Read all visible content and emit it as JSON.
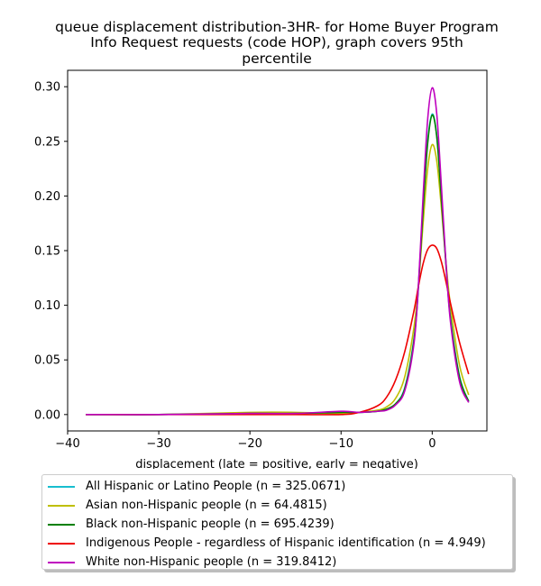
{
  "chart_data": {
    "type": "line",
    "title_lines": [
      "queue displacement distribution-3HR-  for Home Buyer Program",
      "Info Request  requests (code HOP), graph covers 95th",
      "percentile"
    ],
    "xlabel": "displacement (late = positive, early = negative)",
    "ylabel": "",
    "xlim": [
      -40,
      6
    ],
    "ylim": [
      -0.015,
      0.315
    ],
    "xticks": [
      -40,
      -30,
      -20,
      -10,
      0
    ],
    "xtick_labels": [
      "−40",
      "−30",
      "−20",
      "−10",
      "0"
    ],
    "yticks": [
      0.0,
      0.05,
      0.1,
      0.15,
      0.2,
      0.25,
      0.3
    ],
    "ytick_labels": [
      "0.00",
      "0.05",
      "0.10",
      "0.15",
      "0.20",
      "0.25",
      "0.30"
    ],
    "grid": false,
    "legend_placement": "below plot",
    "series": [
      {
        "name": "All Hispanic or Latino People (n = 325.0671)",
        "color": "#17becf",
        "x": [
          -38,
          -30,
          -20,
          -15,
          -10,
          -8,
          -6,
          -5,
          -4,
          -3,
          -2,
          -1.5,
          -1,
          -0.5,
          0,
          0.5,
          1,
          1.5,
          2,
          3,
          4
        ],
        "y": [
          0.0,
          0.0,
          0.001,
          0.001,
          0.002,
          0.002,
          0.003,
          0.005,
          0.01,
          0.025,
          0.07,
          0.12,
          0.19,
          0.25,
          0.275,
          0.255,
          0.2,
          0.14,
          0.09,
          0.035,
          0.012
        ]
      },
      {
        "name": "Asian non-Hispanic people (n = 64.4815)",
        "color": "#bfbf00",
        "x": [
          -38,
          -30,
          -20,
          -15,
          -10,
          -8,
          -6,
          -5,
          -4,
          -3,
          -2,
          -1.5,
          -1,
          -0.5,
          0,
          0.5,
          1,
          1.5,
          2,
          3,
          4
        ],
        "y": [
          0.0,
          0.0,
          0.002,
          0.002,
          0.001,
          0.002,
          0.004,
          0.007,
          0.015,
          0.035,
          0.08,
          0.12,
          0.175,
          0.225,
          0.247,
          0.232,
          0.19,
          0.14,
          0.1,
          0.045,
          0.018
        ]
      },
      {
        "name": "Black non-Hispanic people (n = 695.4239)",
        "color": "#008000",
        "x": [
          -38,
          -30,
          -20,
          -15,
          -10,
          -8,
          -6,
          -5,
          -4,
          -3,
          -2,
          -1.5,
          -1,
          -0.5,
          0,
          0.5,
          1,
          1.5,
          2,
          3,
          4
        ],
        "y": [
          0.0,
          0.0,
          0.001,
          0.001,
          0.002,
          0.002,
          0.003,
          0.005,
          0.01,
          0.024,
          0.068,
          0.118,
          0.188,
          0.248,
          0.274,
          0.254,
          0.198,
          0.138,
          0.088,
          0.034,
          0.012
        ]
      },
      {
        "name": "Indigenous People - regardless of Hispanic identification (n = 4.949)",
        "color": "#ee0000",
        "x": [
          -38,
          -30,
          -20,
          -15,
          -10,
          -8,
          -6,
          -5,
          -4,
          -3,
          -2,
          -1.5,
          -1,
          -0.5,
          0,
          0.5,
          1,
          1.5,
          2,
          3,
          4
        ],
        "y": [
          0.0,
          0.0,
          0.0,
          0.0,
          0.0,
          0.002,
          0.008,
          0.016,
          0.032,
          0.058,
          0.095,
          0.118,
          0.138,
          0.151,
          0.155,
          0.152,
          0.14,
          0.122,
          0.102,
          0.066,
          0.037
        ]
      },
      {
        "name": "White non-Hispanic people (n = 319.8412)",
        "color": "#bf00bf",
        "x": [
          -38,
          -30,
          -20,
          -15,
          -10,
          -8,
          -6,
          -5,
          -4,
          -3,
          -2,
          -1.5,
          -1,
          -0.5,
          0,
          0.5,
          1,
          1.5,
          2,
          3,
          4
        ],
        "y": [
          0.0,
          0.0,
          0.001,
          0.001,
          0.003,
          0.002,
          0.003,
          0.004,
          0.009,
          0.022,
          0.065,
          0.12,
          0.2,
          0.27,
          0.299,
          0.275,
          0.21,
          0.14,
          0.085,
          0.03,
          0.011
        ]
      }
    ]
  }
}
